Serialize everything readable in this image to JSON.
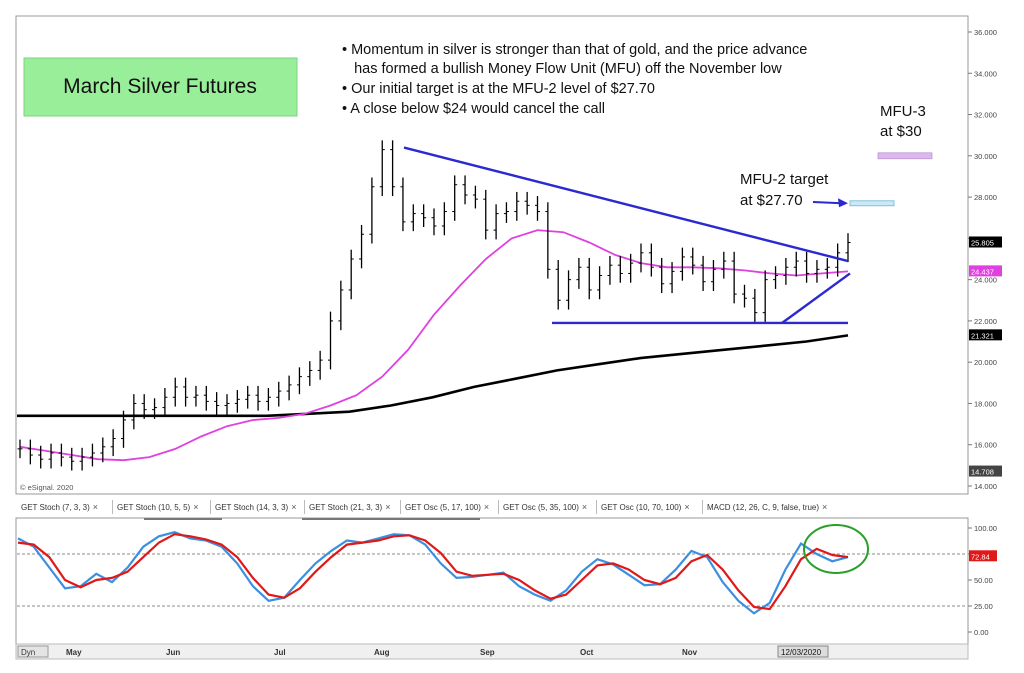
{
  "title_box": "March Silver Futures",
  "bullets": [
    "• Momentum in silver is stronger than that of gold, and the price advance",
    "   has formed a bullish Money Flow Unit (MFU) off the November low",
    "• Our initial target is at the MFU-2 level of $27.70",
    "• A close below $24 would cancel the call"
  ],
  "annotations": {
    "mfu3_line1": "MFU-3",
    "mfu3_line2": "at $30",
    "mfu2_line1": "MFU-2 target",
    "mfu2_line2": "at $27.70"
  },
  "copyright": "© eSignal. 2020",
  "colors": {
    "price": "#000000",
    "ma_fast": "#e040e0",
    "ma_slow": "#000000",
    "trendline": "#2a2ad0",
    "stoch_k": "#3b8fe0",
    "stoch_d": "#e01818",
    "circle": "#28a028",
    "title_box_bg": "#99ee99",
    "mfu3_box": "#dcb8ee",
    "mfu2_box": "#cce8f6"
  },
  "tabs": [
    "GET Stoch (7, 3, 3)",
    "GET Stoch (10, 5, 5)",
    "GET Stoch (14, 3, 3)",
    "GET Stoch (21, 3, 3)",
    "GET Osc (5, 17, 100)",
    "GET Osc (5, 35, 100)",
    "GET Osc (10, 70, 100)",
    "MACD (12, 26, C, 9, false, true)"
  ],
  "bottom_bar": {
    "dyn": "Dyn",
    "date_marker": "12/03/2020"
  },
  "chart_data": [
    {
      "type": "line",
      "title": "March Silver Futures",
      "x_labels": [
        "May",
        "Jun",
        "Jul",
        "Aug",
        "Sep",
        "Oct",
        "Nov"
      ],
      "ylim": [
        14.0,
        36.0
      ],
      "y_ticks": [
        "36.000",
        "34.000",
        "32.000",
        "30.000",
        "28.000",
        "26.000",
        "24.000",
        "22.000",
        "20.000",
        "18.000",
        "16.000",
        "14.000"
      ],
      "axis_markers": [
        {
          "label": "25.805",
          "value": 25.8
        },
        {
          "label": "24.437",
          "value": 24.4
        },
        {
          "label": "21.321",
          "value": 21.3
        },
        {
          "label": "14.708",
          "value": 14.7
        }
      ],
      "series": [
        {
          "kind": "price",
          "values": [
            15.8,
            15.5,
            15.3,
            15.6,
            15.4,
            15.2,
            15.4,
            15.6,
            15.9,
            16.3,
            17.2,
            18.0,
            17.7,
            17.8,
            18.3,
            18.8,
            18.3,
            18.4,
            18.1,
            17.9,
            18.0,
            18.2,
            18.4,
            18.1,
            18.3,
            18.6,
            18.9,
            19.3,
            19.6,
            20.1,
            22.0,
            23.5,
            25.0,
            26.2,
            28.5,
            30.3,
            28.5,
            26.8,
            27.2,
            27.0,
            26.6,
            27.3,
            28.6,
            28.1,
            27.9,
            26.4,
            27.2,
            27.3,
            27.8,
            27.6,
            27.3,
            24.5,
            23.0,
            24.0,
            24.6,
            23.5,
            24.2,
            24.7,
            24.3,
            24.8,
            25.3,
            24.6,
            23.8,
            24.4,
            25.1,
            24.7,
            23.9,
            24.5,
            24.9,
            23.3,
            23.1,
            22.4,
            24.0,
            24.2,
            24.6,
            24.9,
            24.3,
            24.5,
            24.6,
            25.3,
            25.8
          ]
        },
        {
          "kind": "ma_fast",
          "values": [
            15.9,
            15.7,
            15.5,
            15.3,
            15.25,
            15.4,
            15.8,
            16.4,
            16.9,
            17.2,
            17.3,
            17.5,
            17.9,
            18.4,
            19.3,
            20.6,
            22.3,
            23.7,
            25.0,
            26.0,
            26.4,
            26.3,
            25.8,
            25.2,
            24.8,
            24.6,
            24.6,
            24.55,
            24.45,
            24.3,
            24.2,
            24.3,
            24.4
          ]
        },
        {
          "kind": "ma_slow",
          "values": [
            17.4,
            17.4,
            17.4,
            17.4,
            17.4,
            17.4,
            17.4,
            17.5,
            17.6,
            17.9,
            18.3,
            18.8,
            19.2,
            19.6,
            19.9,
            20.2,
            20.4,
            20.6,
            20.8,
            21.0,
            21.3
          ]
        },
        {
          "kind": "support",
          "values": [
            21.9,
            21.9
          ]
        },
        {
          "kind": "resistance",
          "values": [
            30.4,
            24.9
          ]
        },
        {
          "kind": "rising_trendline",
          "values": [
            21.9,
            24.3
          ]
        },
        {
          "kind": "mfu3_target",
          "values": [
            30.0
          ]
        },
        {
          "kind": "mfu2_target",
          "values": [
            27.7
          ]
        }
      ]
    },
    {
      "type": "line",
      "title": "GET Stoch (10, 5, 5)",
      "ylim": [
        0,
        100
      ],
      "y_ticks": [
        "100.00",
        "75.00",
        "50.00",
        "25.00",
        "0.00"
      ],
      "axis_markers": [
        {
          "label": "72.84",
          "value": 72.8
        }
      ],
      "reference_lines": [
        75,
        25
      ],
      "series": [
        {
          "kind": "stoch_k",
          "values": [
            90,
            82,
            62,
            42,
            44,
            56,
            48,
            62,
            82,
            92,
            96,
            90,
            88,
            82,
            66,
            44,
            30,
            33,
            50,
            66,
            78,
            88,
            86,
            90,
            94,
            93,
            84,
            66,
            52,
            53,
            55,
            57,
            44,
            36,
            30,
            40,
            58,
            70,
            65,
            55,
            45,
            46,
            60,
            78,
            72,
            48,
            30,
            18,
            28,
            60,
            85,
            75,
            68,
            72
          ]
        },
        {
          "kind": "stoch_d",
          "values": [
            86,
            84,
            72,
            50,
            43,
            50,
            52,
            58,
            72,
            86,
            94,
            92,
            89,
            84,
            72,
            52,
            36,
            33,
            42,
            58,
            72,
            84,
            86,
            88,
            92,
            93,
            88,
            76,
            58,
            54,
            55,
            56,
            50,
            40,
            32,
            36,
            50,
            64,
            66,
            60,
            50,
            46,
            52,
            68,
            74,
            60,
            40,
            24,
            22,
            44,
            70,
            80,
            74,
            72
          ]
        }
      ]
    }
  ]
}
